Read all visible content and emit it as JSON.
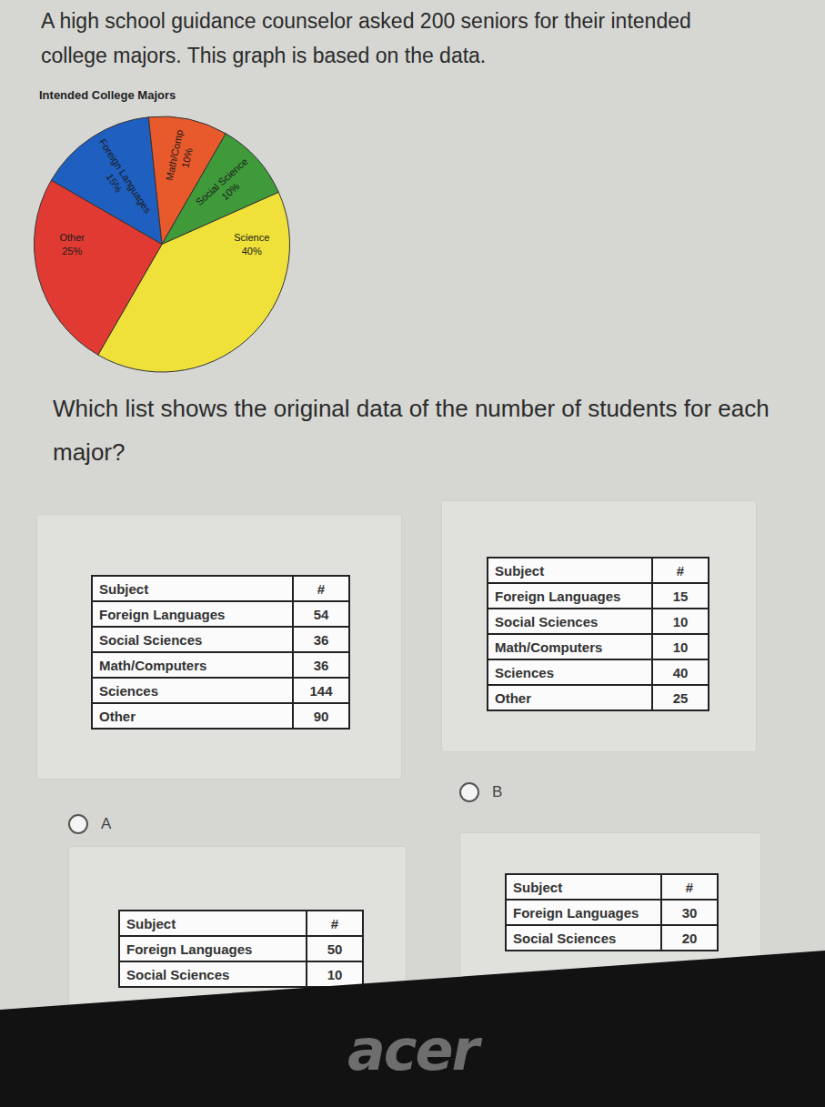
{
  "intro": "A high school guidance counselor asked 200 seniors for their intended college majors. This graph is based on the data.",
  "chart_data": {
    "type": "pie",
    "title": "Intended College Majors",
    "categories": [
      "Foreign Languages",
      "Math/Comp",
      "Social Science",
      "Science",
      "Other"
    ],
    "values": [
      15,
      10,
      10,
      40,
      25
    ],
    "value_labels": [
      "15%",
      "10%",
      "10%",
      "40%",
      "25%"
    ],
    "colors": [
      "#1f5fbf",
      "#e8592c",
      "#3f9a3a",
      "#efe13a",
      "#e03a33"
    ],
    "data_labels": true
  },
  "question": "Which list shows the original data of the number of students for each major?",
  "options": [
    {
      "label": "A",
      "table": {
        "header": [
          "Subject",
          "#"
        ],
        "rows": [
          [
            "Foreign Languages",
            54
          ],
          [
            "Social Sciences",
            36
          ],
          [
            "Math/Computers",
            36
          ],
          [
            "Sciences",
            144
          ],
          [
            "Other",
            90
          ]
        ]
      }
    },
    {
      "label": "B",
      "table": {
        "header": [
          "Subject",
          "#"
        ],
        "rows": [
          [
            "Foreign Languages",
            15
          ],
          [
            "Social Sciences",
            10
          ],
          [
            "Math/Computers",
            10
          ],
          [
            "Sciences",
            40
          ],
          [
            "Other",
            25
          ]
        ]
      }
    },
    {
      "table": {
        "header": [
          "Subject",
          "#"
        ],
        "rows": [
          [
            "Foreign Languages",
            50
          ],
          [
            "Social Sciences",
            10
          ]
        ]
      }
    },
    {
      "table": {
        "header": [
          "Subject",
          "#"
        ],
        "rows": [
          [
            "Foreign Languages",
            30
          ],
          [
            "Social Sciences",
            20
          ]
        ]
      }
    }
  ],
  "device": {
    "brand": "acer"
  }
}
